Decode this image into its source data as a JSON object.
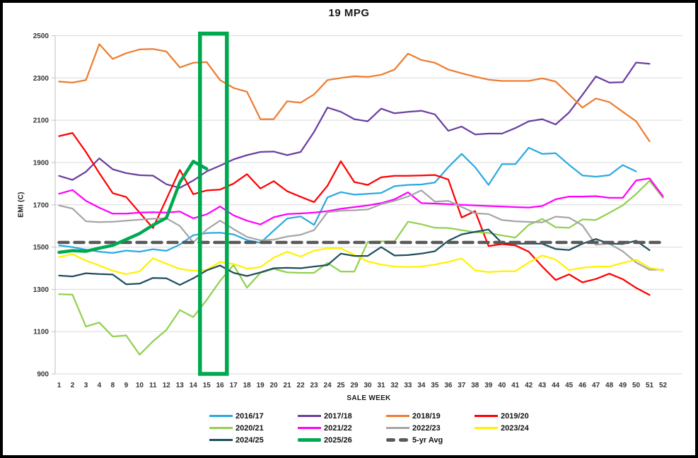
{
  "chart_data": {
    "type": "line",
    "title": "19 MPG",
    "xlabel": "SALE WEEK",
    "ylabel": "EMI (C)",
    "ylim": [
      900,
      2500
    ],
    "y_ticks": [
      900,
      1100,
      1300,
      1500,
      1700,
      1900,
      2100,
      2300,
      2500
    ],
    "grid": true,
    "legend_position": "bottom",
    "categories": [
      "1",
      "2",
      "3",
      "4",
      "8",
      "9",
      "10",
      "11",
      "12",
      "13",
      "14",
      "15",
      "16",
      "17",
      "18",
      "19",
      "20",
      "21",
      "22",
      "23",
      "24",
      "25",
      "29",
      "30",
      "31",
      "32",
      "33",
      "34",
      "35",
      "36",
      "37",
      "38",
      "39",
      "40",
      "41",
      "42",
      "43",
      "44",
      "45",
      "46",
      "47",
      "48",
      "49",
      "50",
      "51",
      "52"
    ],
    "series": [
      {
        "name": "2016/17",
        "color": "#2BA9E1",
        "marker": "line",
        "z": 0,
        "values": [
          1508,
          1500,
          1488,
          1478,
          1472,
          1483,
          1478,
          1490,
          1482,
          1512,
          1556,
          1566,
          1568,
          1560,
          1533,
          1520,
          1578,
          1635,
          1645,
          1605,
          1735,
          1760,
          1748,
          1752,
          1756,
          1788,
          1794,
          1796,
          1805,
          1878,
          1941,
          1878,
          1794,
          1892,
          1892,
          1970,
          1941,
          1944,
          1889,
          1839,
          1833,
          1840,
          1888,
          1858,
          null,
          null
        ]
      },
      {
        "name": "2017/18",
        "color": "#6B3FA0",
        "marker": "line",
        "z": 0,
        "values": [
          1837,
          1818,
          1856,
          1920,
          1868,
          1850,
          1840,
          1838,
          1797,
          1780,
          1815,
          1858,
          1885,
          1915,
          1935,
          1950,
          1952,
          1935,
          1950,
          2045,
          2160,
          2140,
          2105,
          2095,
          2155,
          2133,
          2140,
          2145,
          2128,
          2050,
          2070,
          2033,
          2037,
          2037,
          2063,
          2095,
          2105,
          2080,
          2137,
          2220,
          2307,
          2278,
          2280,
          2373,
          2367,
          null
        ]
      },
      {
        "name": "2018/19",
        "color": "#ED7D31",
        "marker": "line",
        "z": 0,
        "values": [
          2283,
          2278,
          2290,
          2460,
          2390,
          2417,
          2435,
          2437,
          2425,
          2350,
          2372,
          2375,
          2290,
          2253,
          2235,
          2105,
          2105,
          2190,
          2183,
          2222,
          2290,
          2300,
          2308,
          2305,
          2315,
          2340,
          2415,
          2385,
          2372,
          2340,
          2322,
          2306,
          2292,
          2286,
          2286,
          2286,
          2298,
          2283,
          2222,
          2160,
          2203,
          2186,
          2140,
          2095,
          2000,
          null
        ]
      },
      {
        "name": "2019/20",
        "color": "#FF0000",
        "marker": "line",
        "z": 0,
        "values": [
          2025,
          2040,
          1950,
          1850,
          1755,
          1737,
          1663,
          1590,
          1727,
          1865,
          1750,
          1768,
          1772,
          1800,
          1845,
          1777,
          1812,
          1764,
          1738,
          1713,
          1790,
          1906,
          1808,
          1794,
          1830,
          1837,
          1837,
          1839,
          1841,
          1820,
          1640,
          1670,
          1505,
          1514,
          1508,
          1478,
          1408,
          1344,
          1371,
          1333,
          1349,
          1374,
          1348,
          1307,
          1273,
          null
        ]
      },
      {
        "name": "2020/21",
        "color": "#92D050",
        "marker": "line",
        "z": 0,
        "values": [
          1277,
          1275,
          1124,
          1143,
          1077,
          1082,
          991,
          1054,
          1108,
          1202,
          1169,
          1250,
          1340,
          1415,
          1308,
          1378,
          1397,
          1380,
          1378,
          1378,
          1425,
          1384,
          1384,
          1525,
          1527,
          1527,
          1620,
          1608,
          1591,
          1590,
          1580,
          1570,
          1567,
          1555,
          1545,
          1605,
          1633,
          1594,
          1591,
          1631,
          1628,
          1662,
          1697,
          1751,
          1814,
          1733
        ]
      },
      {
        "name": "2021/22",
        "color": "#FF00FF",
        "marker": "line",
        "z": 0,
        "values": [
          1752,
          1770,
          1719,
          1686,
          1658,
          1658,
          1663,
          1665,
          1663,
          1668,
          1636,
          1655,
          1692,
          1650,
          1625,
          1607,
          1641,
          1656,
          1659,
          1663,
          1670,
          1681,
          1689,
          1697,
          1708,
          1726,
          1759,
          1708,
          1706,
          1703,
          1700,
          1697,
          1694,
          1692,
          1689,
          1687,
          1694,
          1726,
          1739,
          1739,
          1741,
          1733,
          1733,
          1815,
          1825,
          1740
        ]
      },
      {
        "name": "2022/23",
        "color": "#A6A6A6",
        "marker": "line",
        "z": 0,
        "values": [
          1697,
          1682,
          1622,
          1618,
          1620,
          1625,
          1630,
          1634,
          1636,
          1600,
          1522,
          1583,
          1625,
          1585,
          1548,
          1532,
          1535,
          1550,
          1558,
          1580,
          1665,
          1672,
          1674,
          1678,
          1703,
          1719,
          1739,
          1768,
          1715,
          1719,
          1690,
          1660,
          1656,
          1628,
          1622,
          1619,
          1617,
          1644,
          1639,
          1603,
          1511,
          1516,
          1480,
          1427,
          1393,
          1393
        ]
      },
      {
        "name": "2023/24",
        "color": "#FFF200",
        "marker": "line",
        "z": 0,
        "values": [
          1452,
          1466,
          1436,
          1413,
          1388,
          1372,
          1385,
          1447,
          1421,
          1397,
          1388,
          1392,
          1430,
          1420,
          1398,
          1405,
          1450,
          1478,
          1455,
          1483,
          1494,
          1494,
          1463,
          1432,
          1417,
          1408,
          1406,
          1408,
          1417,
          1430,
          1446,
          1390,
          1382,
          1386,
          1386,
          1427,
          1460,
          1441,
          1391,
          1402,
          1408,
          1408,
          1425,
          1440,
          1402,
          1390
        ]
      },
      {
        "name": "2024/25",
        "color": "#1F4E5F",
        "marker": "line",
        "z": 0,
        "values": [
          1365,
          1361,
          1376,
          1372,
          1370,
          1324,
          1327,
          1354,
          1352,
          1321,
          1352,
          1390,
          1413,
          1378,
          1363,
          1380,
          1400,
          1402,
          1400,
          1408,
          1415,
          1469,
          1458,
          1458,
          1500,
          1460,
          1462,
          1469,
          1480,
          1530,
          1560,
          1572,
          1583,
          1519,
          1516,
          1516,
          1516,
          1491,
          1486,
          1516,
          1538,
          1516,
          1515,
          1530,
          1485,
          null
        ]
      },
      {
        "name": "2025/26",
        "color": "#00A84F",
        "marker": "thick",
        "z": 2,
        "values": [
          1475,
          1483,
          1480,
          1495,
          1508,
          1536,
          1564,
          1604,
          1638,
          1806,
          1905,
          1870,
          null,
          null,
          null,
          null,
          null,
          null,
          null,
          null,
          null,
          null,
          null,
          null,
          null,
          null,
          null,
          null,
          null,
          null,
          null,
          null,
          null,
          null,
          null,
          null,
          null,
          null,
          null,
          null,
          null,
          null,
          null,
          null,
          null,
          null
        ]
      },
      {
        "name": "5-yr Avg",
        "color": "#595959",
        "marker": "dashes",
        "z": 1,
        "values": [
          1522,
          1522,
          1522,
          1522,
          1522,
          1522,
          1522,
          1522,
          1522,
          1522,
          1522,
          1522,
          1522,
          1522,
          1522,
          1522,
          1522,
          1522,
          1522,
          1522,
          1522,
          1522,
          1522,
          1522,
          1522,
          1522,
          1522,
          1522,
          1522,
          1522,
          1522,
          1522,
          1522,
          1522,
          1522,
          1522,
          1522,
          1522,
          1522,
          1522,
          1522,
          1522,
          1522,
          1522,
          1522,
          1522
        ]
      }
    ],
    "annotations": {
      "highlight_rect": {
        "from_category": "15",
        "to_category": "16",
        "color": "#00A84F",
        "y_from": 900,
        "y_to": 2500
      }
    }
  },
  "style": {
    "gridline_color": "#D9D9D9",
    "axis_line_color": "#BFBFBF",
    "tick_label_color": "#333333",
    "border_color": "#000000"
  }
}
